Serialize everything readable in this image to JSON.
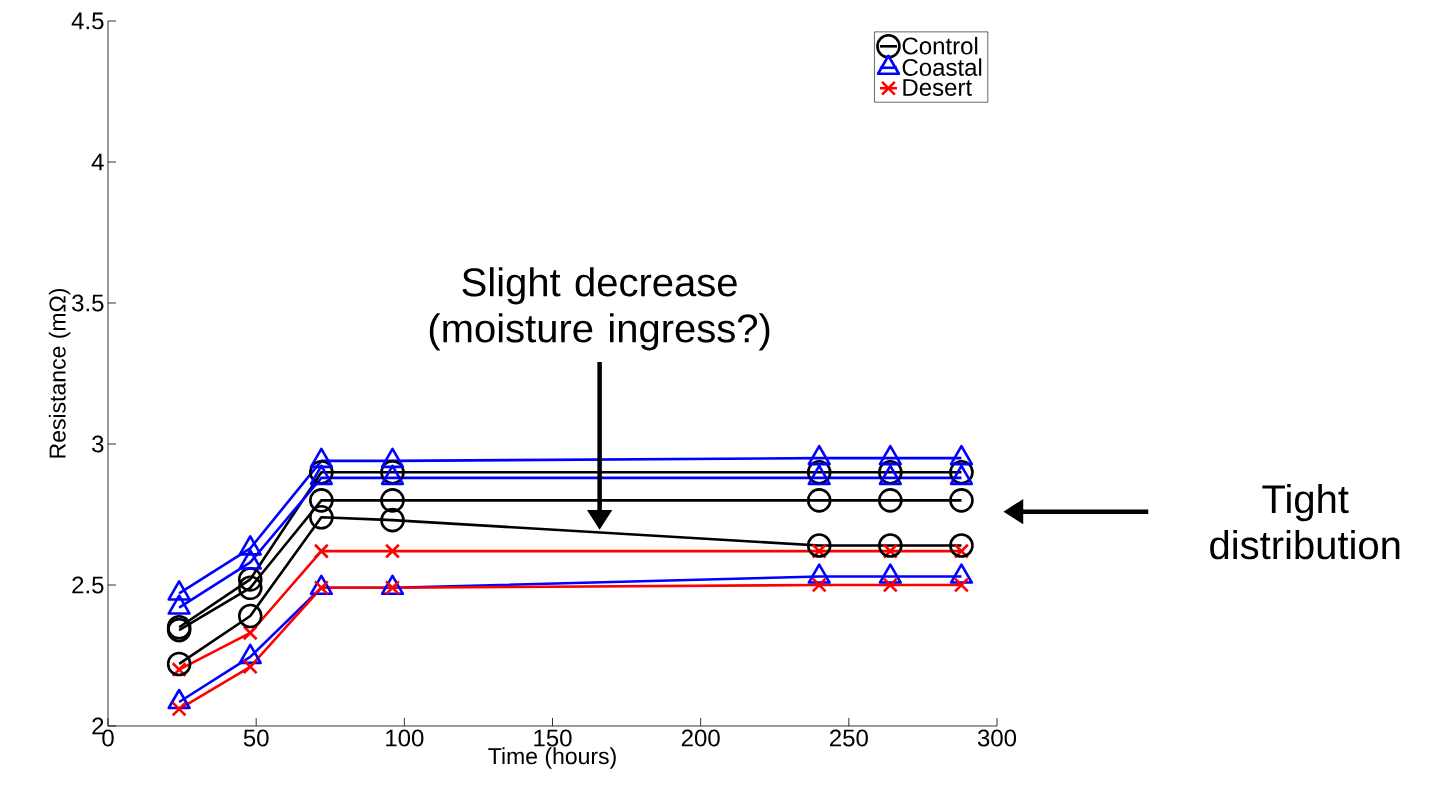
{
  "chart_data": {
    "type": "line",
    "xlabel": "Time (hours)",
    "ylabel": "Resistance (mΩ)",
    "x": [
      24,
      48,
      72,
      96,
      240,
      264,
      288
    ],
    "series": [
      {
        "name": "Control",
        "color": "#000000",
        "marker": "circle",
        "values": [
          2.35,
          2.52,
          2.9,
          2.9,
          2.9,
          2.9,
          2.9
        ]
      },
      {
        "name": "Coastal",
        "color": "#0000ff",
        "marker": "triangle",
        "values": [
          2.47,
          2.63,
          2.94,
          2.94,
          2.95,
          2.95,
          2.95
        ]
      },
      {
        "name": "Desert",
        "color": "#ff0000",
        "marker": "cross",
        "values": [
          2.2,
          2.33,
          2.62,
          2.62,
          2.62,
          2.62,
          2.62
        ]
      },
      {
        "color": "#000000",
        "marker": "circle",
        "values": [
          2.34,
          2.49,
          2.8,
          2.8,
          2.8,
          2.8,
          2.8
        ]
      },
      {
        "color": "#000000",
        "marker": "circle",
        "values": [
          2.22,
          2.39,
          2.74,
          2.73,
          2.64,
          2.64,
          2.64
        ]
      },
      {
        "color": "#0000ff",
        "marker": "triangle",
        "values": [
          2.42,
          2.58,
          2.88,
          2.88,
          2.88,
          2.88,
          2.88
        ]
      },
      {
        "color": "#0000ff",
        "marker": "triangle",
        "values": [
          2.085,
          2.245,
          2.49,
          2.49,
          2.53,
          2.53,
          2.53
        ]
      },
      {
        "color": "#ff0000",
        "marker": "cross",
        "values": [
          2.06,
          2.21,
          2.49,
          2.49,
          2.5,
          2.5,
          2.5
        ]
      }
    ],
    "xlim": [
      0,
      300
    ],
    "ylim": [
      2,
      4.5
    ],
    "xticks": [
      0,
      50,
      100,
      150,
      200,
      250,
      300
    ],
    "yticks": [
      2,
      2.5,
      3,
      3.5,
      4,
      4.5
    ],
    "grid": false,
    "legend": "top right",
    "line_style": "solid",
    "annotations": [
      "Slight decrease (moisture ingress?)",
      "Tight distribution"
    ]
  }
}
